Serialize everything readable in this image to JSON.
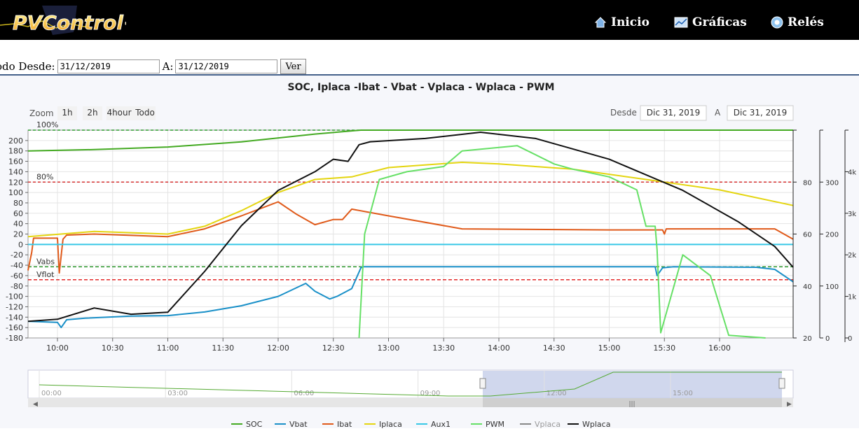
{
  "header": {
    "logo_text": "PVControl+",
    "nav": [
      {
        "label": "Inicio",
        "icon": "home-icon"
      },
      {
        "label": "Gráficas",
        "icon": "chart-icon"
      },
      {
        "label": "Relés",
        "icon": "relay-icon"
      }
    ]
  },
  "filter": {
    "label_from": "odo Desde:",
    "from_value": "31/12/2019",
    "label_to": "A:",
    "to_value": "31/12/2019",
    "submit_label": "Ver"
  },
  "chart_data": {
    "type": "line",
    "title": "SOC, Iplaca -Ibat - Vbat - Vplaca - Wplaca - PWM",
    "zoom": {
      "label": "Zoom",
      "buttons": [
        "1h",
        "2h",
        "4hour",
        "Todo"
      ]
    },
    "range": {
      "label_from": "Desde",
      "from": "Dic 31, 2019",
      "label_to": "A",
      "to": "Dic 31, 2019"
    },
    "x_ticks": [
      "10:00",
      "10:30",
      "11:00",
      "11:30",
      "12:00",
      "12:30",
      "13:00",
      "13:30",
      "14:00",
      "14:30",
      "15:00",
      "15:30",
      "16:00"
    ],
    "x_tick_minutes": [
      600,
      630,
      660,
      690,
      720,
      750,
      780,
      810,
      840,
      870,
      900,
      930,
      960
    ],
    "x_range_minutes": [
      584,
      1000
    ],
    "y_left": {
      "range": [
        -180,
        220
      ],
      "ticks": [
        200,
        180,
        160,
        140,
        120,
        100,
        80,
        60,
        40,
        20,
        0,
        -20,
        -40,
        -60,
        -80,
        -100,
        -120,
        -140,
        -160,
        -180
      ]
    },
    "y_right1": {
      "range": [
        20,
        100
      ],
      "ticks": [
        20,
        40,
        60,
        80
      ]
    },
    "y_right2": {
      "range": [
        0,
        400
      ],
      "ticks": [
        0,
        100,
        200,
        300
      ]
    },
    "y_right3": {
      "range": [
        0,
        5000
      ],
      "ticks": [
        "0",
        "1k",
        "2k",
        "3k",
        "4k"
      ],
      "tick_values": [
        0,
        1000,
        2000,
        3000,
        4000
      ]
    },
    "plotlines": [
      {
        "label": "100%",
        "y": 100,
        "axis": "soc",
        "color": "#2f9e2f",
        "dash": "4,3"
      },
      {
        "label": "80%",
        "y": 80,
        "axis": "soc",
        "color": "#d63333",
        "dash": "4,3"
      },
      {
        "label": "Vabs",
        "y": -43,
        "axis": "left",
        "color": "#1a8c1a",
        "dash": "5,3"
      },
      {
        "label": "Vflot",
        "y": -68,
        "axis": "left",
        "color": "#e01515",
        "dash": "5,3"
      }
    ],
    "series": [
      {
        "name": "SOC",
        "color": "#44aa22",
        "axis": "soc",
        "x": [
          584,
          620,
          660,
          700,
          740,
          765,
          1000
        ],
        "y": [
          92,
          92.5,
          93.5,
          95.5,
          98.5,
          100,
          100
        ]
      },
      {
        "name": "Vbat",
        "color": "#1a90c8",
        "axis": "left",
        "x": [
          584,
          600,
          602,
          605,
          615,
          640,
          660,
          680,
          700,
          720,
          735,
          740,
          748,
          752,
          760,
          765,
          766,
          800,
          900,
          925,
          926,
          929,
          935,
          980,
          990,
          1000
        ],
        "y": [
          -148,
          -150,
          -160,
          -145,
          -142,
          -138,
          -137,
          -130,
          -118,
          -100,
          -75,
          -90,
          -105,
          -100,
          -85,
          -45,
          -43,
          -43,
          -43,
          -43,
          -60,
          -45,
          -43,
          -44,
          -48,
          -72
        ]
      },
      {
        "name": "Ibat",
        "color": "#e05a1a",
        "axis": "left",
        "x": [
          584,
          586,
          587,
          600,
          601,
          603,
          605,
          620,
          660,
          680,
          700,
          720,
          730,
          740,
          750,
          755,
          760,
          780,
          820,
          900,
          929,
          930,
          931,
          990,
          1000
        ],
        "y": [
          -50,
          -15,
          12,
          12,
          -55,
          10,
          18,
          20,
          15,
          30,
          55,
          82,
          58,
          38,
          48,
          48,
          68,
          55,
          30,
          28,
          28,
          20,
          30,
          30,
          10
        ]
      },
      {
        "name": "Iplaca",
        "color": "#e4d50f",
        "axis": "left",
        "x": [
          584,
          620,
          660,
          680,
          700,
          720,
          740,
          760,
          780,
          820,
          840,
          880,
          920,
          960,
          1000
        ],
        "y": [
          15,
          25,
          20,
          35,
          65,
          100,
          125,
          130,
          148,
          158,
          155,
          145,
          125,
          105,
          75
        ]
      },
      {
        "name": "Aux1",
        "color": "#38c8e6",
        "axis": "left",
        "x": [
          584,
          1000
        ],
        "y": [
          0,
          0
        ]
      },
      {
        "name": "PWM",
        "color": "#66e066",
        "axis": "pwm",
        "x": [
          764,
          767,
          775,
          790,
          810,
          820,
          850,
          870,
          880,
          900,
          915,
          920,
          925,
          926,
          928,
          940,
          955,
          965,
          985
        ],
        "y": [
          0,
          200,
          305,
          320,
          330,
          360,
          370,
          335,
          325,
          310,
          285,
          215,
          215,
          170,
          10,
          160,
          120,
          5,
          0
        ]
      },
      {
        "name": "Vplaca",
        "color": "#888888",
        "axis": "left",
        "x": [],
        "y": []
      },
      {
        "name": "Wplaca",
        "color": "#111111",
        "axis": "watts",
        "x": [
          584,
          600,
          620,
          640,
          660,
          680,
          700,
          720,
          740,
          750,
          758,
          764,
          770,
          800,
          830,
          860,
          900,
          940,
          970,
          990,
          1000
        ],
        "y": [
          400,
          450,
          720,
          570,
          620,
          1600,
          2700,
          3550,
          4000,
          4300,
          4250,
          4650,
          4720,
          4800,
          4950,
          4800,
          4300,
          3550,
          2800,
          2200,
          1700
        ]
      }
    ],
    "navigator": {
      "ticks": [
        "00:00",
        "03:00",
        "06:00",
        "09:00",
        "12:00",
        "15:00"
      ],
      "tick_minutes": [
        0,
        180,
        360,
        540,
        720,
        900
      ]
    },
    "legend_position": "bottom",
    "grid": true
  }
}
